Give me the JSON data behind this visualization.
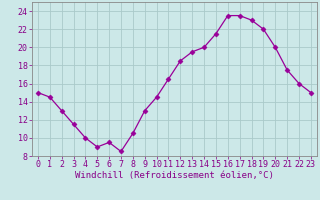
{
  "x": [
    0,
    1,
    2,
    3,
    4,
    5,
    6,
    7,
    8,
    9,
    10,
    11,
    12,
    13,
    14,
    15,
    16,
    17,
    18,
    19,
    20,
    21,
    22,
    23
  ],
  "y": [
    15.0,
    14.5,
    13.0,
    11.5,
    10.0,
    9.0,
    9.5,
    8.5,
    10.5,
    13.0,
    14.5,
    16.5,
    18.5,
    19.5,
    20.0,
    21.5,
    23.5,
    23.5,
    23.0,
    22.0,
    20.0,
    17.5,
    16.0,
    15.0
  ],
  "line_color": "#990099",
  "marker": "D",
  "marker_size": 2.5,
  "bg_color": "#cce8e8",
  "grid_color": "#aacaca",
  "xlim": [
    -0.5,
    23.5
  ],
  "ylim": [
    8,
    25
  ],
  "yticks": [
    8,
    10,
    12,
    14,
    16,
    18,
    20,
    22,
    24
  ],
  "xticks": [
    0,
    1,
    2,
    3,
    4,
    5,
    6,
    7,
    8,
    9,
    10,
    11,
    12,
    13,
    14,
    15,
    16,
    17,
    18,
    19,
    20,
    21,
    22,
    23
  ],
  "xlabel": "Windchill (Refroidissement éolien,°C)",
  "xlabel_color": "#880088",
  "tick_color": "#880088",
  "axis_label_fontsize": 6.5,
  "tick_fontsize": 6.0
}
